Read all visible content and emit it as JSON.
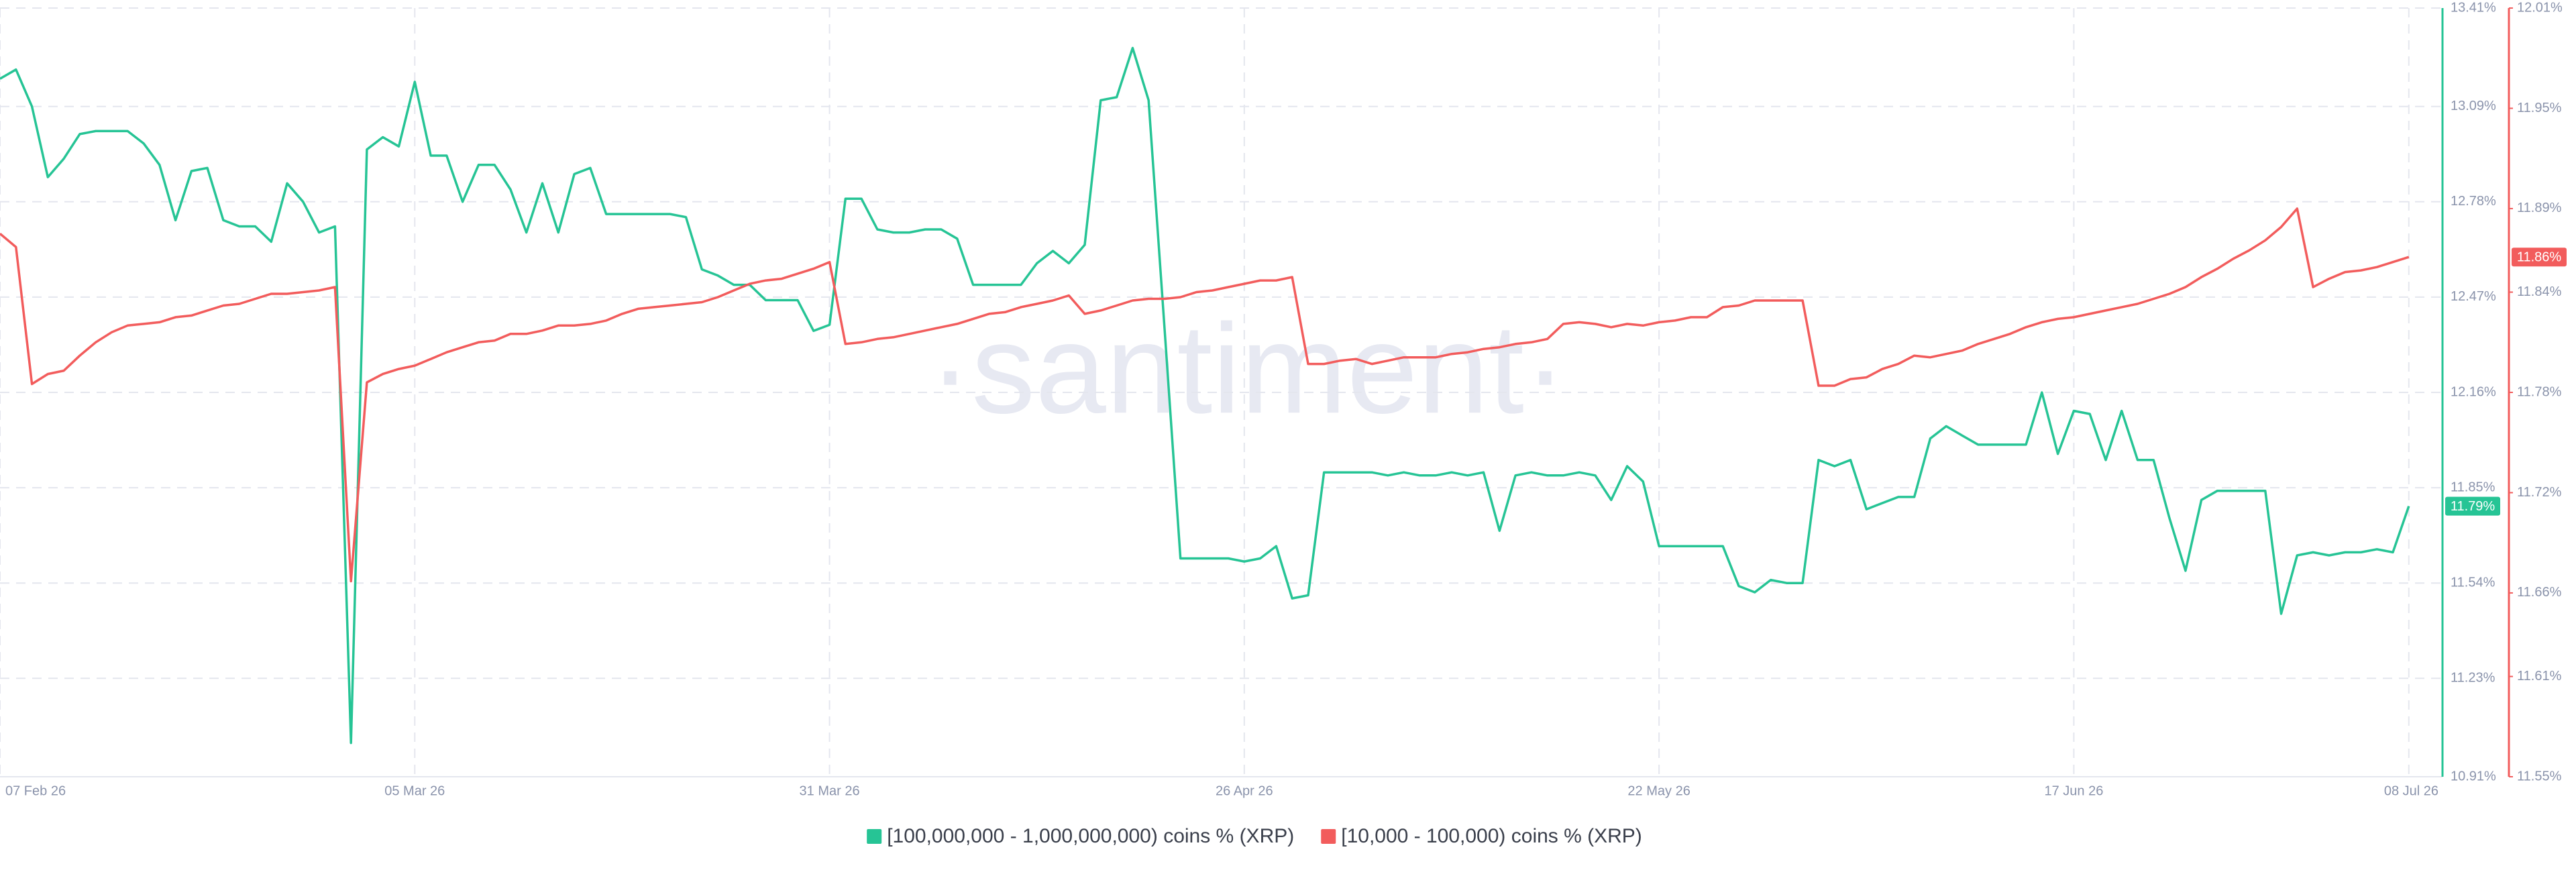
{
  "chart_data": {
    "type": "line",
    "watermark": "·santiment·",
    "categories": [
      "07 Feb 26",
      null,
      null,
      null,
      null,
      null,
      null,
      null,
      null,
      null,
      null,
      null,
      null,
      null,
      null,
      null,
      null,
      null,
      null,
      null,
      null,
      null,
      null,
      null,
      null,
      null,
      "05 Mar 26",
      null,
      null,
      null,
      null,
      null,
      null,
      null,
      null,
      null,
      null,
      null,
      null,
      null,
      null,
      null,
      null,
      null,
      null,
      null,
      null,
      null,
      null,
      null,
      null,
      null,
      "31 Mar 26",
      null,
      null,
      null,
      null,
      null,
      null,
      null,
      null,
      null,
      null,
      null,
      null,
      null,
      null,
      null,
      null,
      null,
      null,
      null,
      null,
      null,
      null,
      null,
      null,
      null,
      "26 Apr 26",
      null,
      null,
      null,
      null,
      null,
      null,
      null,
      null,
      null,
      null,
      null,
      null,
      null,
      null,
      null,
      null,
      null,
      null,
      null,
      null,
      null,
      null,
      null,
      null,
      null,
      "22 May 26",
      null,
      null,
      null,
      null,
      null,
      null,
      null,
      null,
      null,
      null,
      null,
      null,
      null,
      null,
      null,
      null,
      null,
      null,
      null,
      null,
      null,
      null,
      null,
      null,
      null,
      "17 Jun 26",
      null,
      null,
      null,
      null,
      null,
      null,
      null,
      null,
      null,
      null,
      null,
      null,
      null,
      null,
      null,
      null,
      null,
      null,
      null,
      null,
      "08 Jul 26"
    ],
    "series": [
      {
        "name": "[100,000,000 - 1,000,000,000) coins % (XRP)",
        "color": "#26c495",
        "axis": "y",
        "current_label": "11.79%",
        "values": [
          13.18,
          13.21,
          13.09,
          12.86,
          12.92,
          13.0,
          13.01,
          13.01,
          13.01,
          12.97,
          12.9,
          12.72,
          12.88,
          12.89,
          12.72,
          12.7,
          12.7,
          12.65,
          12.84,
          12.78,
          12.68,
          12.7,
          11.02,
          12.95,
          12.99,
          12.96,
          13.17,
          12.93,
          12.93,
          12.78,
          12.9,
          12.9,
          12.82,
          12.68,
          12.84,
          12.68,
          12.87,
          12.89,
          12.74,
          12.74,
          12.74,
          12.74,
          12.74,
          12.73,
          12.56,
          12.54,
          12.51,
          12.51,
          12.46,
          12.46,
          12.46,
          12.36,
          12.38,
          12.79,
          12.79,
          12.69,
          12.68,
          12.68,
          12.69,
          12.69,
          12.66,
          12.51,
          12.51,
          12.51,
          12.51,
          12.58,
          12.62,
          12.58,
          12.64,
          13.11,
          13.12,
          13.28,
          13.11,
          12.37,
          11.62,
          11.62,
          11.62,
          11.62,
          11.61,
          11.62,
          11.66,
          11.49,
          11.5,
          11.9,
          11.9,
          11.9,
          11.9,
          11.89,
          11.9,
          11.89,
          11.89,
          11.9,
          11.89,
          11.9,
          11.71,
          11.89,
          11.9,
          11.89,
          11.89,
          11.9,
          11.89,
          11.81,
          11.92,
          11.87,
          11.66,
          11.66,
          11.66,
          11.66,
          11.66,
          11.53,
          11.51,
          11.55,
          11.54,
          11.54,
          11.94,
          11.92,
          11.94,
          11.78,
          11.8,
          11.82,
          11.82,
          12.01,
          12.05,
          12.02,
          11.99,
          11.99,
          11.99,
          11.99,
          12.16,
          11.96,
          12.1,
          12.09,
          11.94,
          12.1,
          11.94,
          11.94,
          11.75,
          11.58,
          11.81,
          11.84,
          11.84,
          11.84,
          11.84,
          11.44,
          11.63,
          11.64,
          11.63,
          11.64,
          11.64,
          11.65,
          11.64,
          11.79
        ]
      },
      {
        "name": "[10,000 - 100,000) coins % (XRP)",
        "color": "#f25c5c",
        "axis": "y2",
        "current_label": "11.86%",
        "values": [
          11.875,
          11.867,
          11.785,
          11.791,
          11.793,
          11.802,
          11.81,
          11.816,
          11.82,
          11.821,
          11.822,
          11.825,
          11.826,
          11.829,
          11.832,
          11.833,
          11.836,
          11.839,
          11.839,
          11.84,
          11.841,
          11.843,
          11.667,
          11.786,
          11.791,
          11.794,
          11.796,
          11.8,
          11.804,
          11.807,
          11.81,
          11.811,
          11.815,
          11.815,
          11.817,
          11.82,
          11.82,
          11.821,
          11.823,
          11.827,
          11.83,
          11.831,
          11.832,
          11.833,
          11.834,
          11.837,
          11.841,
          11.845,
          11.847,
          11.848,
          11.851,
          11.854,
          11.858,
          11.809,
          11.81,
          11.812,
          11.813,
          11.815,
          11.817,
          11.819,
          11.821,
          11.824,
          11.827,
          11.828,
          11.831,
          11.833,
          11.835,
          11.838,
          11.827,
          11.829,
          11.832,
          11.835,
          11.836,
          11.836,
          11.837,
          11.84,
          11.841,
          11.843,
          11.845,
          11.847,
          11.847,
          11.849,
          11.797,
          11.797,
          11.799,
          11.8,
          11.797,
          11.799,
          11.801,
          11.801,
          11.801,
          11.803,
          11.804,
          11.806,
          11.807,
          11.809,
          11.81,
          11.812,
          11.821,
          11.822,
          11.821,
          11.819,
          11.821,
          11.82,
          11.822,
          11.823,
          11.825,
          11.825,
          11.831,
          11.832,
          11.835,
          11.835,
          11.835,
          11.835,
          11.784,
          11.784,
          11.788,
          11.789,
          11.794,
          11.797,
          11.802,
          11.801,
          11.803,
          11.805,
          11.809,
          11.812,
          11.815,
          11.819,
          11.822,
          11.824,
          11.825,
          11.827,
          11.829,
          11.831,
          11.833,
          11.836,
          11.839,
          11.843,
          11.849,
          11.854,
          11.86,
          11.865,
          11.871,
          11.879,
          11.89,
          11.843,
          11.848,
          11.852,
          11.853,
          11.855,
          11.858,
          11.861
        ]
      }
    ],
    "ylim": [
      10.91,
      13.41
    ],
    "yticks": [
      {
        "value": 10.91,
        "label": "10.91%"
      },
      {
        "value": 11.23,
        "label": "11.23%"
      },
      {
        "value": 11.54,
        "label": "11.54%"
      },
      {
        "value": 11.85,
        "label": "11.85%"
      },
      {
        "value": 12.16,
        "label": "12.16%"
      },
      {
        "value": 12.47,
        "label": "12.47%"
      },
      {
        "value": 12.78,
        "label": "12.78%"
      },
      {
        "value": 13.09,
        "label": "13.09%"
      },
      {
        "value": 13.41,
        "label": "13.41%"
      }
    ],
    "y2lim": [
      11.55,
      12.01
    ],
    "y2ticks": [
      {
        "value": 11.55,
        "label": "11.55%"
      },
      {
        "value": 11.61,
        "label": "11.61%"
      },
      {
        "value": 11.66,
        "label": "11.66%"
      },
      {
        "value": 11.72,
        "label": "11.72%"
      },
      {
        "value": 11.78,
        "label": "11.78%"
      },
      {
        "value": 11.84,
        "label": "11.84%"
      },
      {
        "value": 11.89,
        "label": "11.89%"
      },
      {
        "value": 11.95,
        "label": "11.95%"
      },
      {
        "value": 12.01,
        "label": "12.01%"
      }
    ],
    "grid": true
  }
}
